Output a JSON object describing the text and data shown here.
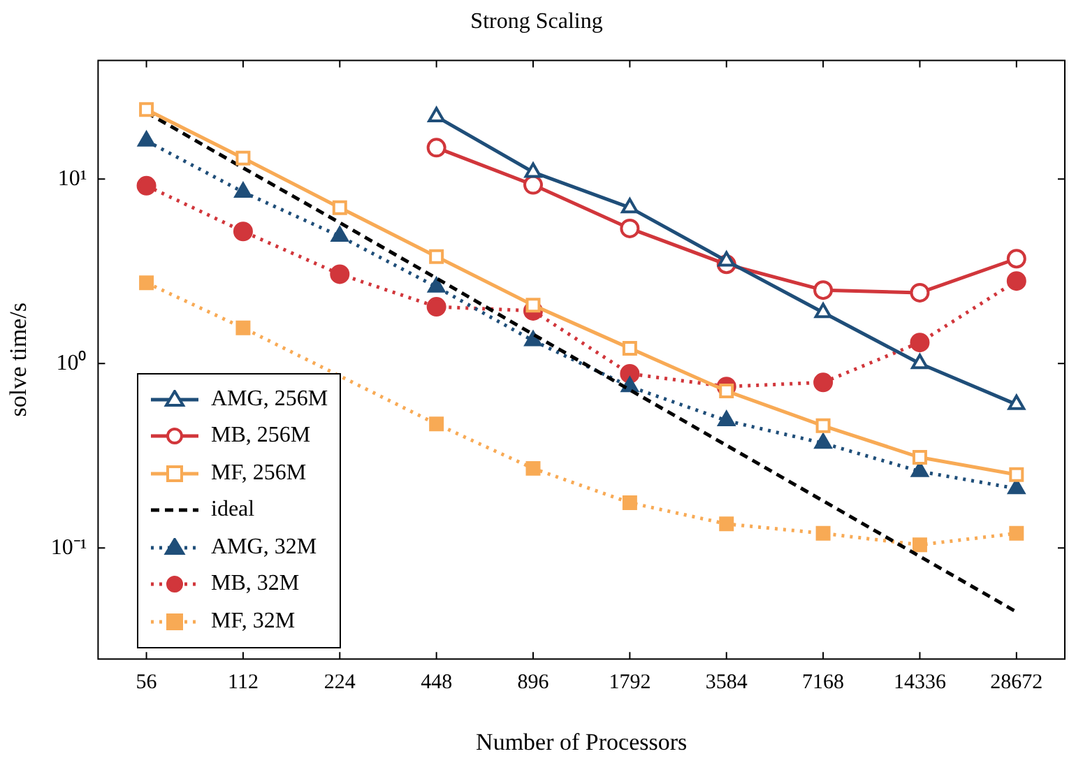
{
  "chart_data": {
    "type": "line",
    "title": "Strong Scaling",
    "xlabel": "Number of Processors",
    "ylabel": "solve time/s",
    "categories": [
      "56",
      "112",
      "224",
      "448",
      "896",
      "1792",
      "3584",
      "7168",
      "14336",
      "28672"
    ],
    "log": "y",
    "ylim": [
      0.025,
      44
    ],
    "yticks": [
      {
        "value": 0.1,
        "label": "10⁻¹"
      },
      {
        "value": 1,
        "label": "10⁰"
      },
      {
        "value": 10,
        "label": "10¹"
      }
    ],
    "legend": "bottom left",
    "series": [
      {
        "name": "AMG, 256M",
        "color": "#1f4e79",
        "marker": "triangle",
        "line_style": "solid",
        "values": [
          null,
          null,
          null,
          21.8,
          10.9,
          7.0,
          3.6,
          1.89,
          1.0,
          0.6
        ]
      },
      {
        "name": "MB, 256M",
        "color": "#d1363b",
        "marker": "circle",
        "line_style": "solid",
        "values": [
          null,
          null,
          null,
          14.8,
          9.3,
          5.4,
          3.45,
          2.5,
          2.42,
          3.7
        ]
      },
      {
        "name": "MF, 256M",
        "color": "#f8aa55",
        "marker": "square",
        "line_style": "solid",
        "values": [
          23.8,
          13.0,
          7.0,
          3.8,
          2.07,
          1.21,
          0.71,
          0.46,
          0.31,
          0.25
        ]
      },
      {
        "name": "ideal",
        "color": "#000000",
        "marker": "none",
        "line_style": "dashed",
        "values": [
          23,
          11.5,
          5.8,
          2.9,
          1.44,
          0.72,
          0.36,
          0.18,
          0.09,
          0.045
        ]
      },
      {
        "name": "AMG, 32M",
        "color": "#1f4e79",
        "marker": "triangle",
        "line_style": "dotted",
        "values": [
          16.1,
          8.5,
          4.9,
          2.6,
          1.33,
          0.75,
          0.49,
          0.37,
          0.26,
          0.21
        ]
      },
      {
        "name": "MB, 32M",
        "color": "#d1363b",
        "marker": "circle",
        "line_style": "dotted",
        "values": [
          9.2,
          5.2,
          3.05,
          2.03,
          1.93,
          0.88,
          0.75,
          0.79,
          1.3,
          2.8
        ]
      },
      {
        "name": "MF, 32M",
        "color": "#f8aa55",
        "marker": "square",
        "line_style": "dotted",
        "values": [
          2.74,
          1.56,
          null,
          0.47,
          0.27,
          0.176,
          0.135,
          0.12,
          0.104,
          0.12
        ]
      }
    ]
  }
}
